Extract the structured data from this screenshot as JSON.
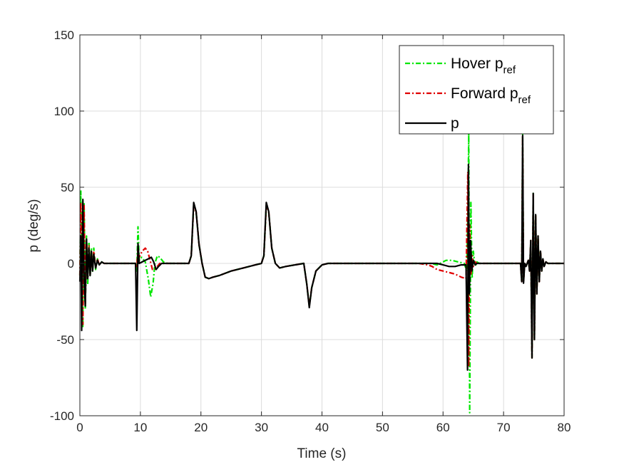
{
  "chart_data": {
    "type": "line",
    "xlabel": "Time (s)",
    "ylabel": "p (deg/s)",
    "xlim": [
      0,
      80
    ],
    "ylim": [
      -100,
      150
    ],
    "xticks": [
      0,
      10,
      20,
      30,
      40,
      50,
      60,
      70,
      80
    ],
    "yticks": [
      -100,
      -50,
      0,
      50,
      100,
      150
    ],
    "grid": true,
    "legend_position": "top-right",
    "series": [
      {
        "name": "Hover p",
        "name_subscript": "ref",
        "color": "#00e600",
        "style": "dash-dot",
        "x": [
          0,
          0.15,
          0.3,
          0.5,
          0.7,
          0.9,
          1.1,
          1.3,
          1.5,
          1.7,
          1.9,
          2.1,
          2.3,
          2.6,
          2.9,
          3.2,
          3.6,
          4,
          9.2,
          9.4,
          9.6,
          9.8,
          10.2,
          10.8,
          11.3,
          11.7,
          12.1,
          12.4,
          12.8,
          13.2,
          13.8,
          14.5,
          18,
          18.4,
          18.8,
          19.2,
          19.7,
          20.2,
          20.7,
          21.3,
          22,
          23,
          25,
          27,
          29,
          30,
          30.4,
          30.8,
          31.2,
          31.7,
          32.3,
          33,
          34,
          37,
          37.5,
          37.9,
          38.3,
          39,
          40,
          41,
          44,
          50,
          56,
          58,
          59,
          60,
          60.5,
          61.5,
          62.5,
          63.5,
          63.9,
          64.1,
          64.25,
          64.4,
          64.6,
          64.8,
          65,
          65.3,
          65.6,
          66,
          72.8,
          73,
          73.15,
          73.3,
          73.5,
          73.7,
          73.9,
          74.1,
          74.3,
          74.5,
          74.7,
          74.9,
          75.1,
          75.3,
          75.5,
          75.7,
          75.9,
          76.1,
          76.3,
          76.5,
          76.7,
          77,
          77.3,
          77.7,
          78,
          80
        ],
        "y": [
          -8,
          48,
          12,
          -42,
          40,
          -30,
          18,
          -14,
          14,
          -8,
          10,
          -6,
          10,
          -4,
          3,
          -1,
          1,
          0,
          0,
          -5,
          24,
          2,
          4,
          1,
          -10,
          -22,
          -13,
          0,
          5,
          4,
          1,
          0,
          0,
          5,
          38,
          34,
          12,
          0,
          -9,
          -10,
          -9,
          -8,
          -5,
          -3,
          -1,
          0,
          5,
          38,
          34,
          10,
          0,
          -3,
          -2,
          0,
          -14,
          -28,
          -16,
          -5,
          -1,
          0,
          0,
          0,
          0,
          0,
          -1,
          1,
          2,
          2,
          1,
          0,
          -5,
          30,
          85,
          -98,
          40,
          -10,
          8,
          -2,
          1,
          0,
          0,
          -12,
          85,
          -12,
          0,
          -2,
          0,
          2,
          -5,
          15,
          -62,
          46,
          -50,
          32,
          -20,
          18,
          -12,
          8,
          -5,
          3,
          -2,
          1,
          0,
          0,
          0,
          0
        ]
      },
      {
        "name": "Forward p",
        "name_subscript": "ref",
        "color": "#e00000",
        "style": "dash-dot",
        "x": [
          0,
          0.15,
          0.3,
          0.5,
          0.7,
          0.9,
          1.1,
          1.3,
          1.5,
          1.7,
          1.9,
          2.1,
          2.3,
          2.6,
          2.9,
          3.2,
          3.6,
          4,
          9.2,
          9.4,
          9.6,
          9.8,
          10.3,
          10.8,
          11.2,
          11.6,
          12,
          12.4,
          12.8,
          13.2,
          14,
          18,
          18.4,
          18.8,
          19.2,
          19.7,
          20.2,
          20.7,
          21.3,
          22,
          23,
          25,
          27,
          29,
          30,
          30.4,
          30.8,
          31.2,
          31.7,
          32.3,
          33,
          34,
          37,
          37.5,
          37.9,
          38.3,
          39,
          40,
          41,
          44,
          50,
          56,
          57.5,
          58.2,
          59,
          60,
          61,
          62,
          63,
          63.8,
          64.1,
          64.25,
          64.4,
          64.6,
          64.8,
          65,
          65.3,
          65.6,
          66,
          72.8,
          73,
          73.15,
          73.3,
          73.5,
          73.7,
          73.9,
          74.1,
          74.3,
          74.5,
          74.7,
          74.9,
          75.1,
          75.3,
          75.5,
          75.7,
          75.9,
          76.1,
          76.3,
          76.5,
          76.7,
          77,
          77.3,
          77.7,
          78,
          80
        ],
        "y": [
          -8,
          40,
          10,
          -40,
          38,
          -28,
          15,
          -10,
          12,
          -8,
          8,
          -5,
          8,
          -3,
          3,
          -1,
          1,
          0,
          0,
          -3,
          10,
          4,
          8,
          10,
          8,
          2,
          -4,
          -4,
          -2,
          0,
          0,
          0,
          5,
          38,
          34,
          12,
          0,
          -9,
          -10,
          -9,
          -8,
          -5,
          -3,
          -1,
          0,
          5,
          38,
          34,
          10,
          0,
          -3,
          -2,
          0,
          -14,
          -28,
          -16,
          -5,
          -1,
          0,
          0,
          0,
          0,
          -1,
          -2,
          -4,
          -5,
          -6,
          -7,
          -9,
          -10,
          60,
          -68,
          25,
          -8,
          5,
          -2,
          1,
          0,
          0,
          0,
          -12,
          84,
          -12,
          0,
          -2,
          0,
          2,
          -5,
          15,
          -62,
          46,
          -50,
          32,
          -20,
          18,
          -12,
          8,
          -5,
          3,
          -2,
          1,
          0,
          0,
          0,
          0
        ]
      },
      {
        "name": "p",
        "name_subscript": "",
        "color": "#000000",
        "style": "solid",
        "x": [
          0,
          0.15,
          0.3,
          0.5,
          0.7,
          0.9,
          1.1,
          1.3,
          1.5,
          1.7,
          1.9,
          2.1,
          2.3,
          2.6,
          2.9,
          3.2,
          3.6,
          4,
          9.2,
          9.4,
          9.6,
          9.8,
          10.3,
          10.8,
          11.3,
          11.8,
          12.2,
          12.6,
          13,
          13.5,
          14.5,
          18,
          18.4,
          18.8,
          19.2,
          19.7,
          20.2,
          20.7,
          21.3,
          22,
          23,
          25,
          27,
          29,
          30,
          30.4,
          30.8,
          31.2,
          31.7,
          32.3,
          33,
          34,
          37,
          37.5,
          37.9,
          38.3,
          39,
          40,
          41,
          44,
          50,
          56,
          58,
          59,
          60,
          61,
          62,
          63,
          63.8,
          64.05,
          64.2,
          64.35,
          64.55,
          64.75,
          65,
          65.3,
          65.6,
          66,
          72.8,
          73,
          73.15,
          73.3,
          73.5,
          73.7,
          73.9,
          74.1,
          74.3,
          74.5,
          74.7,
          74.9,
          75.1,
          75.3,
          75.5,
          75.7,
          75.9,
          76.1,
          76.3,
          76.5,
          76.7,
          77,
          77.3,
          77.7,
          78,
          80
        ],
        "y": [
          -12,
          18,
          -44,
          42,
          -10,
          -28,
          16,
          -10,
          10,
          -8,
          8,
          -5,
          6,
          -3,
          2,
          -1,
          1,
          0,
          0,
          -44,
          13,
          0,
          1,
          2,
          3,
          4,
          1,
          -4,
          -2,
          0,
          0,
          0,
          5,
          40,
          34,
          12,
          0,
          -9,
          -10,
          -9,
          -8,
          -5,
          -3,
          -1,
          0,
          5,
          40,
          34,
          10,
          0,
          -3,
          -2,
          0,
          -14,
          -29,
          -16,
          -5,
          -1,
          0,
          0,
          0,
          0,
          0,
          0,
          -1,
          -2,
          -2,
          -1,
          -1,
          -70,
          65,
          -20,
          15,
          -5,
          2,
          -1,
          0,
          0,
          0,
          -12,
          84,
          -13,
          0,
          -2,
          0,
          2,
          -5,
          15,
          -62,
          46,
          -50,
          32,
          -20,
          18,
          -12,
          8,
          -5,
          3,
          -2,
          1,
          0,
          0,
          0,
          0
        ]
      }
    ]
  }
}
